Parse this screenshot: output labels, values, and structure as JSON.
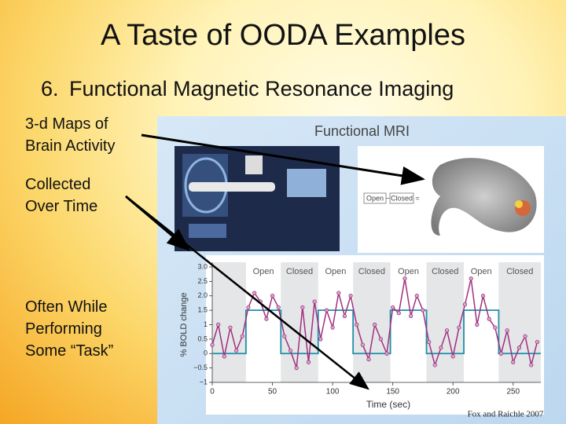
{
  "header": {
    "title": "A Taste of OODA Examples"
  },
  "subtitle": {
    "number": "6.",
    "text": "Functional Magnetic Resonance Imaging"
  },
  "bullets": [
    [
      "3-d Maps of",
      "Brain Activity"
    ],
    [
      "Collected",
      "Over Time"
    ],
    [
      "Often While",
      "Performing",
      "Some “Task”"
    ]
  ],
  "figure": {
    "title": "Functional MRI",
    "contrast": {
      "left": "Open",
      "operator": "−",
      "right": "Closed",
      "equals": "="
    },
    "credit": "Fox and Raichle 2007",
    "chart": {
      "type": "line",
      "y_label": "% BOLD change",
      "x_label": "Time (sec)",
      "xlim": [
        0,
        273
      ],
      "ylim": [
        -1,
        3
      ],
      "xticks": [
        0,
        50,
        100,
        150,
        200,
        250
      ],
      "yticks": [
        {
          "value": 3,
          "label": "3.0"
        },
        2.5,
        {
          "value": 2,
          "label": "2.0"
        },
        1.5,
        1,
        0.5,
        0,
        {
          "value": -0.5,
          "label": "−0.5"
        },
        {
          "value": -1,
          "label": "−1"
        }
      ],
      "blocks": [
        {
          "label": "Open",
          "start": 28,
          "end": 57
        },
        {
          "label": "Closed",
          "start": 57,
          "end": 88
        },
        {
          "label": "Open",
          "start": 88,
          "end": 117
        },
        {
          "label": "Closed",
          "start": 117,
          "end": 148
        },
        {
          "label": "Open",
          "start": 148,
          "end": 178
        },
        {
          "label": "Closed",
          "start": 178,
          "end": 209
        },
        {
          "label": "Open",
          "start": 209,
          "end": 238
        },
        {
          "label": "Closed",
          "start": 238,
          "end": 273
        }
      ],
      "model": {
        "color": "#1f8fa8",
        "x": [
          0,
          28,
          28,
          57,
          57,
          88,
          88,
          117,
          117,
          148,
          148,
          178,
          178,
          209,
          209,
          238,
          238,
          273
        ],
        "values": [
          0,
          0,
          1.5,
          1.5,
          0,
          0,
          1.5,
          1.5,
          0,
          0,
          1.5,
          1.5,
          0,
          0,
          1.5,
          1.5,
          0,
          0
        ]
      },
      "signal": {
        "color": "#a0307f",
        "x": [
          0,
          5,
          10,
          15,
          20,
          25,
          30,
          35,
          40,
          45,
          50,
          55,
          60,
          65,
          70,
          75,
          80,
          85,
          90,
          95,
          100,
          105,
          110,
          115,
          120,
          125,
          130,
          135,
          140,
          145,
          150,
          155,
          160,
          165,
          170,
          175,
          180,
          185,
          190,
          195,
          200,
          205,
          210,
          215,
          220,
          225,
          230,
          235,
          240,
          245,
          250,
          255,
          260,
          265,
          270
        ],
        "values": [
          0.3,
          1.0,
          -0.1,
          0.9,
          0.1,
          0.6,
          1.6,
          2.1,
          1.8,
          1.2,
          2.0,
          1.6,
          0.6,
          0.1,
          -0.5,
          1.6,
          -0.3,
          1.8,
          0.5,
          1.5,
          0.9,
          2.1,
          1.3,
          2.0,
          1.0,
          0.3,
          -0.2,
          1.0,
          0.5,
          0.0,
          1.6,
          1.4,
          2.6,
          1.3,
          2.0,
          1.5,
          0.4,
          -0.4,
          0.2,
          0.8,
          -0.1,
          0.9,
          1.7,
          2.6,
          1.0,
          2.0,
          1.2,
          0.9,
          0.0,
          0.8,
          -0.3,
          0.2,
          0.6,
          -0.4,
          0.4
        ]
      }
    }
  }
}
